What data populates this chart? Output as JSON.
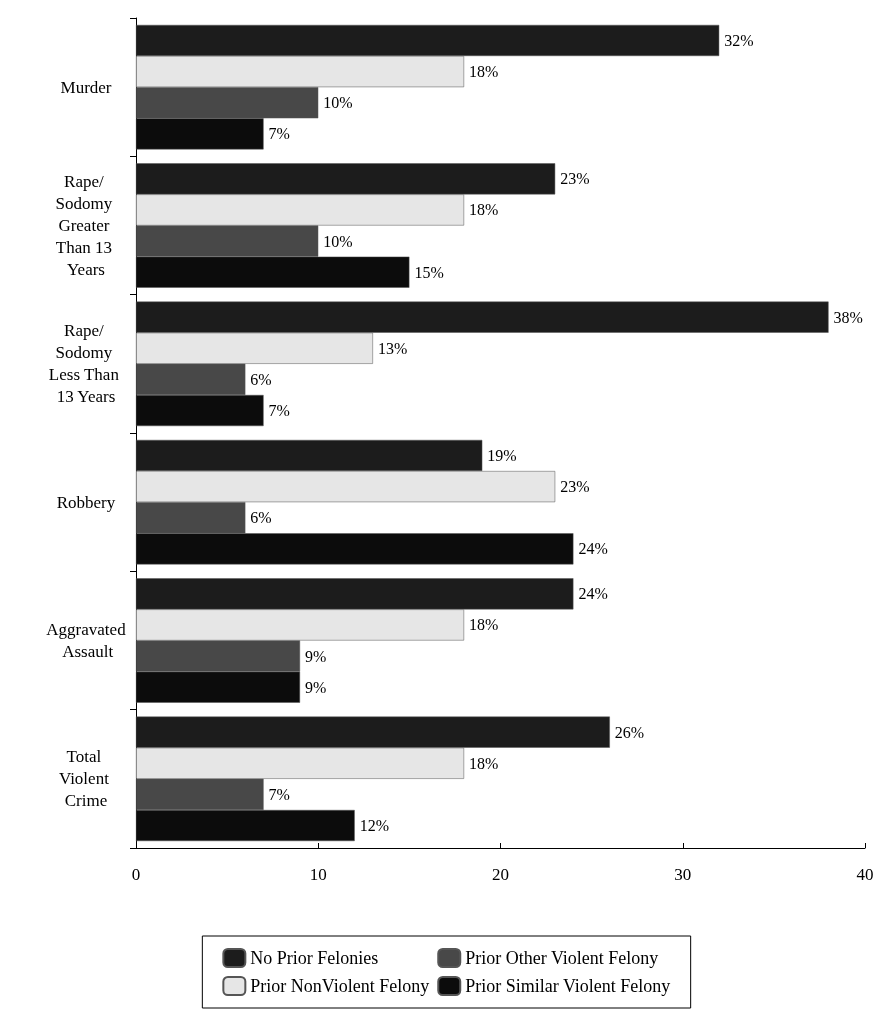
{
  "chart_data": {
    "type": "bar",
    "orientation": "horizontal",
    "categories": [
      "Murder",
      "Rape/ Sodomy Greater Than 13 Years",
      "Rape/ Sodomy Less Than 13 Years",
      "Robbery",
      "Aggravated Assault",
      "Total Violent Crime"
    ],
    "series": [
      {
        "name": "No Prior Felonies",
        "color": "#1c1c1c",
        "values": [
          32,
          23,
          38,
          19,
          24,
          26
        ],
        "value_labels": [
          "32%",
          "23%",
          "38%",
          "19%",
          "24%",
          "26%"
        ]
      },
      {
        "name": "Prior NonViolent Felony",
        "color": "#e6e6e6",
        "values": [
          18,
          18,
          13,
          23,
          18,
          18
        ],
        "value_labels": [
          "18%",
          "18%",
          "13%",
          "23%",
          "18%",
          "18%"
        ]
      },
      {
        "name": "Prior Other Violent Felony",
        "color": "#484848",
        "values": [
          10,
          10,
          6,
          6,
          9,
          7
        ],
        "value_labels": [
          "10%",
          "10%",
          "6%",
          "6%",
          "9%",
          "7%"
        ]
      },
      {
        "name": "Prior Similar Violent Felony",
        "color": "#0c0c0c",
        "values": [
          7,
          15,
          7,
          24,
          9,
          12
        ],
        "value_labels": [
          "7%",
          "15%",
          "7%",
          "24%",
          "9%",
          "12%"
        ]
      }
    ],
    "xlim": [
      0,
      40
    ],
    "xticks": [
      0,
      10,
      20,
      30,
      40
    ],
    "grid": false,
    "legend": "bottom"
  }
}
